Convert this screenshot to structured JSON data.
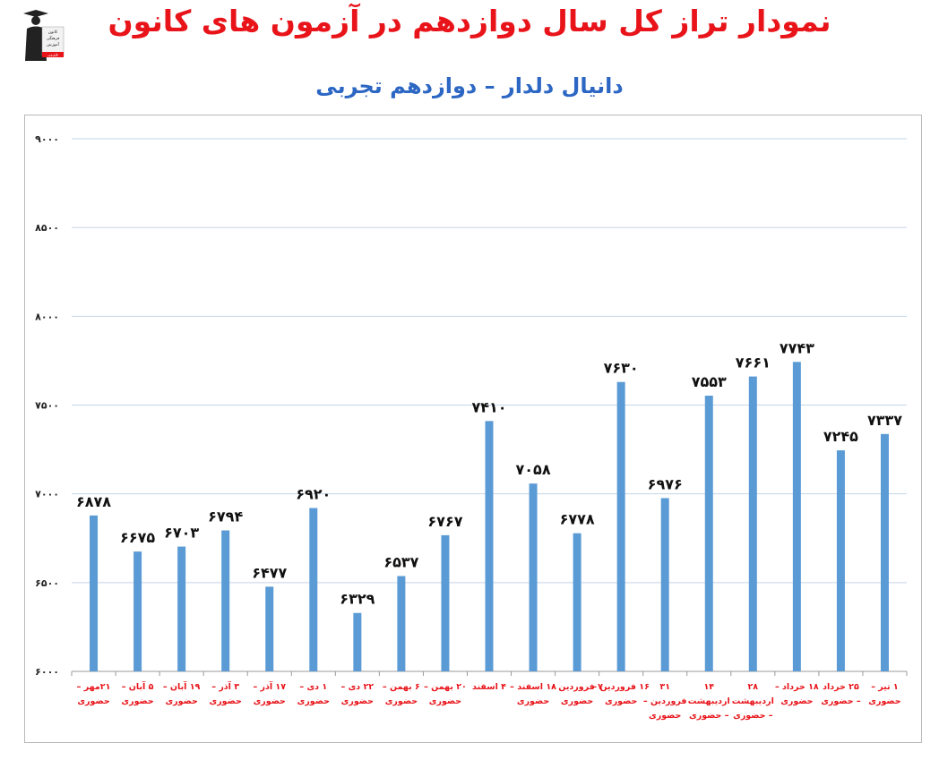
{
  "header": {
    "title": "نمودار تراز کل سال دوازدهم در آزمون های کانون",
    "subtitle": "دانیال دلدار – دوازدهم تجربی"
  },
  "logo": {
    "lines": [
      "کانون",
      "فرهنگی",
      "آموزش",
      "قلم‌چی"
    ]
  },
  "colors": {
    "bar": "#5b9bd5",
    "title": "#e8141a",
    "subtitle": "#2d67c4",
    "category_label": "#e8141a",
    "grid": "#c5d4e8"
  },
  "chart_data": {
    "type": "bar",
    "title": "نمودار تراز کل سال دوازدهم در آزمون های کانون",
    "subtitle": "دانیال دلدار – دوازدهم تجربی",
    "ylim": [
      6000,
      9000
    ],
    "yticks": [
      6000,
      6500,
      7000,
      7500,
      8000,
      8500,
      9000
    ],
    "ytick_labels": [
      "۶۰۰۰",
      "۶۵۰۰",
      "۷۰۰۰",
      "۷۵۰۰",
      "۸۰۰۰",
      "۸۵۰۰",
      "۹۰۰۰"
    ],
    "grid": true,
    "categories": [
      [
        "۲۱مهر –",
        "حضوری"
      ],
      [
        "۵ آبان –",
        "حضوری"
      ],
      [
        "۱۹ آبان –",
        "حضوری"
      ],
      [
        "۳ آذر –",
        "حضوری"
      ],
      [
        "۱۷ آذر –",
        "حضوری"
      ],
      [
        "۱ دی –",
        "حضوری"
      ],
      [
        "۲۲ دی –",
        "حضوری"
      ],
      [
        "۶ بهمن –",
        "حضوری"
      ],
      [
        "۲۰ بهمن –",
        "حضوری"
      ],
      [
        "۴ اسفند"
      ],
      [
        "۱۸ اسفند –",
        "حضوری"
      ],
      [
        "۷ فروردین –",
        "حضوری"
      ],
      [
        "۱۶ فروردین –",
        "حضوری"
      ],
      [
        "۳۱",
        "فروردین –",
        "حضوری"
      ],
      [
        "۱۴",
        "اردیبهشت",
        "– حضوری"
      ],
      [
        "۲۸",
        "اردیبهشت",
        "– حضوری"
      ],
      [
        "۱۸ خرداد –",
        "حضوری"
      ],
      [
        "۲۵ خرداد",
        "– حضوری"
      ],
      [
        "۱ تیر –",
        "حضوری"
      ]
    ],
    "values": [
      6878,
      6675,
      6703,
      6794,
      6477,
      6920,
      6329,
      6537,
      6767,
      7410,
      7058,
      6778,
      7630,
      6976,
      7553,
      7661,
      7743,
      7245,
      7337
    ],
    "value_labels": [
      "۶۸۷۸",
      "۶۶۷۵",
      "۶۷۰۳",
      "۶۷۹۴",
      "۶۴۷۷",
      "۶۹۲۰",
      "۶۳۲۹",
      "۶۵۳۷",
      "۶۷۶۷",
      "۷۴۱۰",
      "۷۰۵۸",
      "۶۷۷۸",
      "۷۶۳۰",
      "۶۹۷۶",
      "۷۵۵۳",
      "۷۶۶۱",
      "۷۷۴۳",
      "۷۲۴۵",
      "۷۳۳۷"
    ]
  }
}
